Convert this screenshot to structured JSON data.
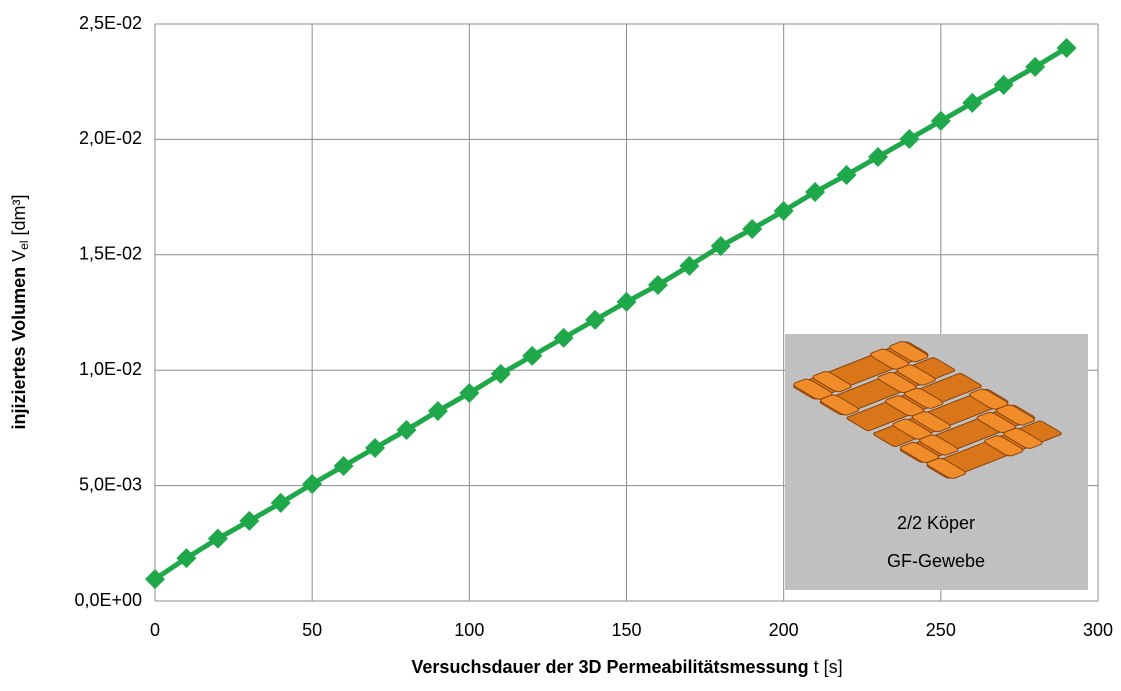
{
  "chart_data": {
    "type": "line",
    "x_label": [
      "Versuchsdauer der 3D Permeabilitätsmessung",
      " t [s]"
    ],
    "y_label": [
      "injiziertes Volumen ",
      "V",
      "el",
      " [dm³]"
    ],
    "annotations": [
      "2/2 Köper",
      "GF-Gewebe"
    ],
    "series": [
      {
        "color": "#1fa84a",
        "x": [
          0,
          10,
          20,
          30,
          40,
          50,
          60,
          70,
          80,
          90,
          100,
          110,
          120,
          130,
          140,
          150,
          160,
          170,
          180,
          190,
          200,
          210,
          220,
          230,
          240,
          250,
          260,
          270,
          280,
          290
        ],
        "values": [
          0.00095,
          0.00186,
          0.0027,
          0.00347,
          0.00425,
          0.00507,
          0.00585,
          0.00663,
          0.00741,
          0.00823,
          0.00901,
          0.00984,
          0.01062,
          0.0114,
          0.01218,
          0.01296,
          0.01369,
          0.01452,
          0.01538,
          0.01612,
          0.0169,
          0.01772,
          0.01846,
          0.01924,
          0.02002,
          0.0208,
          0.02158,
          0.02236,
          0.02314,
          0.02396
        ]
      }
    ],
    "xlim": [
      0,
      300
    ],
    "xticks": [
      0,
      50,
      100,
      150,
      200,
      250,
      300
    ],
    "ylim": [
      0,
      0.025
    ],
    "yticks": [
      {
        "value": 0,
        "label": "0,0E+00"
      },
      {
        "value": 0.005,
        "label": "5,0E-03"
      },
      {
        "value": 0.01,
        "label": "1,0E-02"
      },
      {
        "value": 0.015,
        "label": "1,5E-02"
      },
      {
        "value": 0.02,
        "label": "2,0E-02"
      },
      {
        "value": 0.025,
        "label": "2,5E-02"
      }
    ],
    "grid": true
  }
}
